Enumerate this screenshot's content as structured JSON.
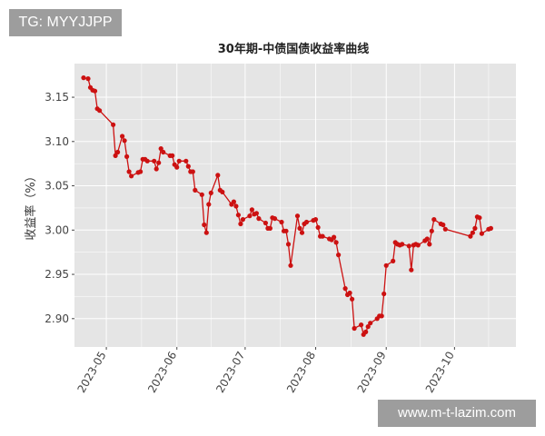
{
  "badge": {
    "text": "TG: MYYJJPP"
  },
  "watermark": {
    "text": "www.m-t-lazim.com"
  },
  "colors": {
    "series": "#cc1111",
    "panel": "#e5e5e5",
    "grid": "#ffffff"
  },
  "chart_data": {
    "type": "line",
    "title": "30年期-中债国债收益率曲线",
    "xlabel": "",
    "ylabel": "收益率（%）",
    "grid": true,
    "legend": "none",
    "x_ticks": [
      "2023-05",
      "2023-06",
      "2023-07",
      "2023-08",
      "2023-09",
      "2023-10"
    ],
    "y_ticks": [
      "2.90",
      "2.95",
      "3.00",
      "3.05",
      "3.10",
      "3.15"
    ],
    "xlim": [
      "2023-04-17",
      "2023-10-28"
    ],
    "ylim": [
      2.868,
      3.188
    ],
    "series": [
      {
        "x": [
          "2023-04-21",
          "2023-04-23",
          "2023-04-24",
          "2023-04-25",
          "2023-04-26",
          "2023-04-27",
          "2023-04-28",
          "2023-05-04",
          "2023-05-05",
          "2023-05-06",
          "2023-05-08",
          "2023-05-09",
          "2023-05-10",
          "2023-05-11",
          "2023-05-12",
          "2023-05-15",
          "2023-05-16",
          "2023-05-17",
          "2023-05-18",
          "2023-05-19",
          "2023-05-22",
          "2023-05-23",
          "2023-05-24",
          "2023-05-25",
          "2023-05-26",
          "2023-05-29",
          "2023-05-30",
          "2023-05-31",
          "2023-06-01",
          "2023-06-02",
          "2023-06-05",
          "2023-06-06",
          "2023-06-07",
          "2023-06-08",
          "2023-06-09",
          "2023-06-12",
          "2023-06-13",
          "2023-06-14",
          "2023-06-15",
          "2023-06-16",
          "2023-06-19",
          "2023-06-20",
          "2023-06-21",
          "2023-06-25",
          "2023-06-26",
          "2023-06-27",
          "2023-06-28",
          "2023-06-29",
          "2023-06-30",
          "2023-07-03",
          "2023-07-04",
          "2023-07-05",
          "2023-07-06",
          "2023-07-07",
          "2023-07-10",
          "2023-07-11",
          "2023-07-12",
          "2023-07-13",
          "2023-07-14",
          "2023-07-17",
          "2023-07-18",
          "2023-07-19",
          "2023-07-20",
          "2023-07-21",
          "2023-07-24",
          "2023-07-25",
          "2023-07-26",
          "2023-07-27",
          "2023-07-28",
          "2023-07-31",
          "2023-08-01",
          "2023-08-02",
          "2023-08-03",
          "2023-08-04",
          "2023-08-07",
          "2023-08-08",
          "2023-08-09",
          "2023-08-10",
          "2023-08-11",
          "2023-08-14",
          "2023-08-15",
          "2023-08-16",
          "2023-08-17",
          "2023-08-18",
          "2023-08-21",
          "2023-08-22",
          "2023-08-23",
          "2023-08-24",
          "2023-08-25",
          "2023-08-28",
          "2023-08-29",
          "2023-08-30",
          "2023-08-31",
          "2023-09-01",
          "2023-09-04",
          "2023-09-05",
          "2023-09-06",
          "2023-09-07",
          "2023-09-08",
          "2023-09-11",
          "2023-09-12",
          "2023-09-13",
          "2023-09-14",
          "2023-09-15",
          "2023-09-18",
          "2023-09-19",
          "2023-09-20",
          "2023-09-21",
          "2023-09-22",
          "2023-09-25",
          "2023-09-26",
          "2023-09-27",
          "2023-10-08",
          "2023-10-09",
          "2023-10-10",
          "2023-10-11",
          "2023-10-12",
          "2023-10-13",
          "2023-10-16",
          "2023-10-17"
        ],
        "values": [
          3.172,
          3.171,
          3.161,
          3.158,
          3.157,
          3.137,
          3.135,
          3.119,
          3.084,
          3.088,
          3.106,
          3.101,
          3.083,
          3.066,
          3.061,
          3.065,
          3.066,
          3.08,
          3.08,
          3.078,
          3.078,
          3.069,
          3.076,
          3.092,
          3.088,
          3.084,
          3.084,
          3.074,
          3.071,
          3.078,
          3.078,
          3.072,
          3.066,
          3.066,
          3.045,
          3.04,
          3.006,
          2.997,
          3.029,
          3.042,
          3.062,
          3.045,
          3.043,
          3.029,
          3.032,
          3.027,
          3.017,
          3.007,
          3.012,
          3.016,
          3.023,
          3.018,
          3.019,
          3.013,
          3.008,
          3.002,
          3.002,
          3.014,
          3.013,
          3.009,
          2.999,
          2.999,
          2.984,
          2.96,
          3.016,
          3.002,
          2.997,
          3.007,
          3.009,
          3.011,
          3.012,
          3.003,
          2.993,
          2.993,
          2.99,
          2.989,
          2.992,
          2.986,
          2.972,
          2.934,
          2.927,
          2.929,
          2.922,
          2.889,
          2.893,
          2.882,
          2.885,
          2.891,
          2.895,
          2.9,
          2.903,
          2.903,
          2.928,
          2.96,
          2.965,
          2.986,
          2.984,
          2.983,
          2.984,
          2.982,
          2.955,
          2.983,
          2.984,
          2.983,
          2.988,
          2.99,
          2.984,
          2.999,
          3.012,
          3.007,
          3.006,
          3.001,
          2.993,
          2.997,
          3.002,
          3.015,
          3.014,
          2.996,
          3.001,
          3.002
        ]
      }
    ]
  }
}
